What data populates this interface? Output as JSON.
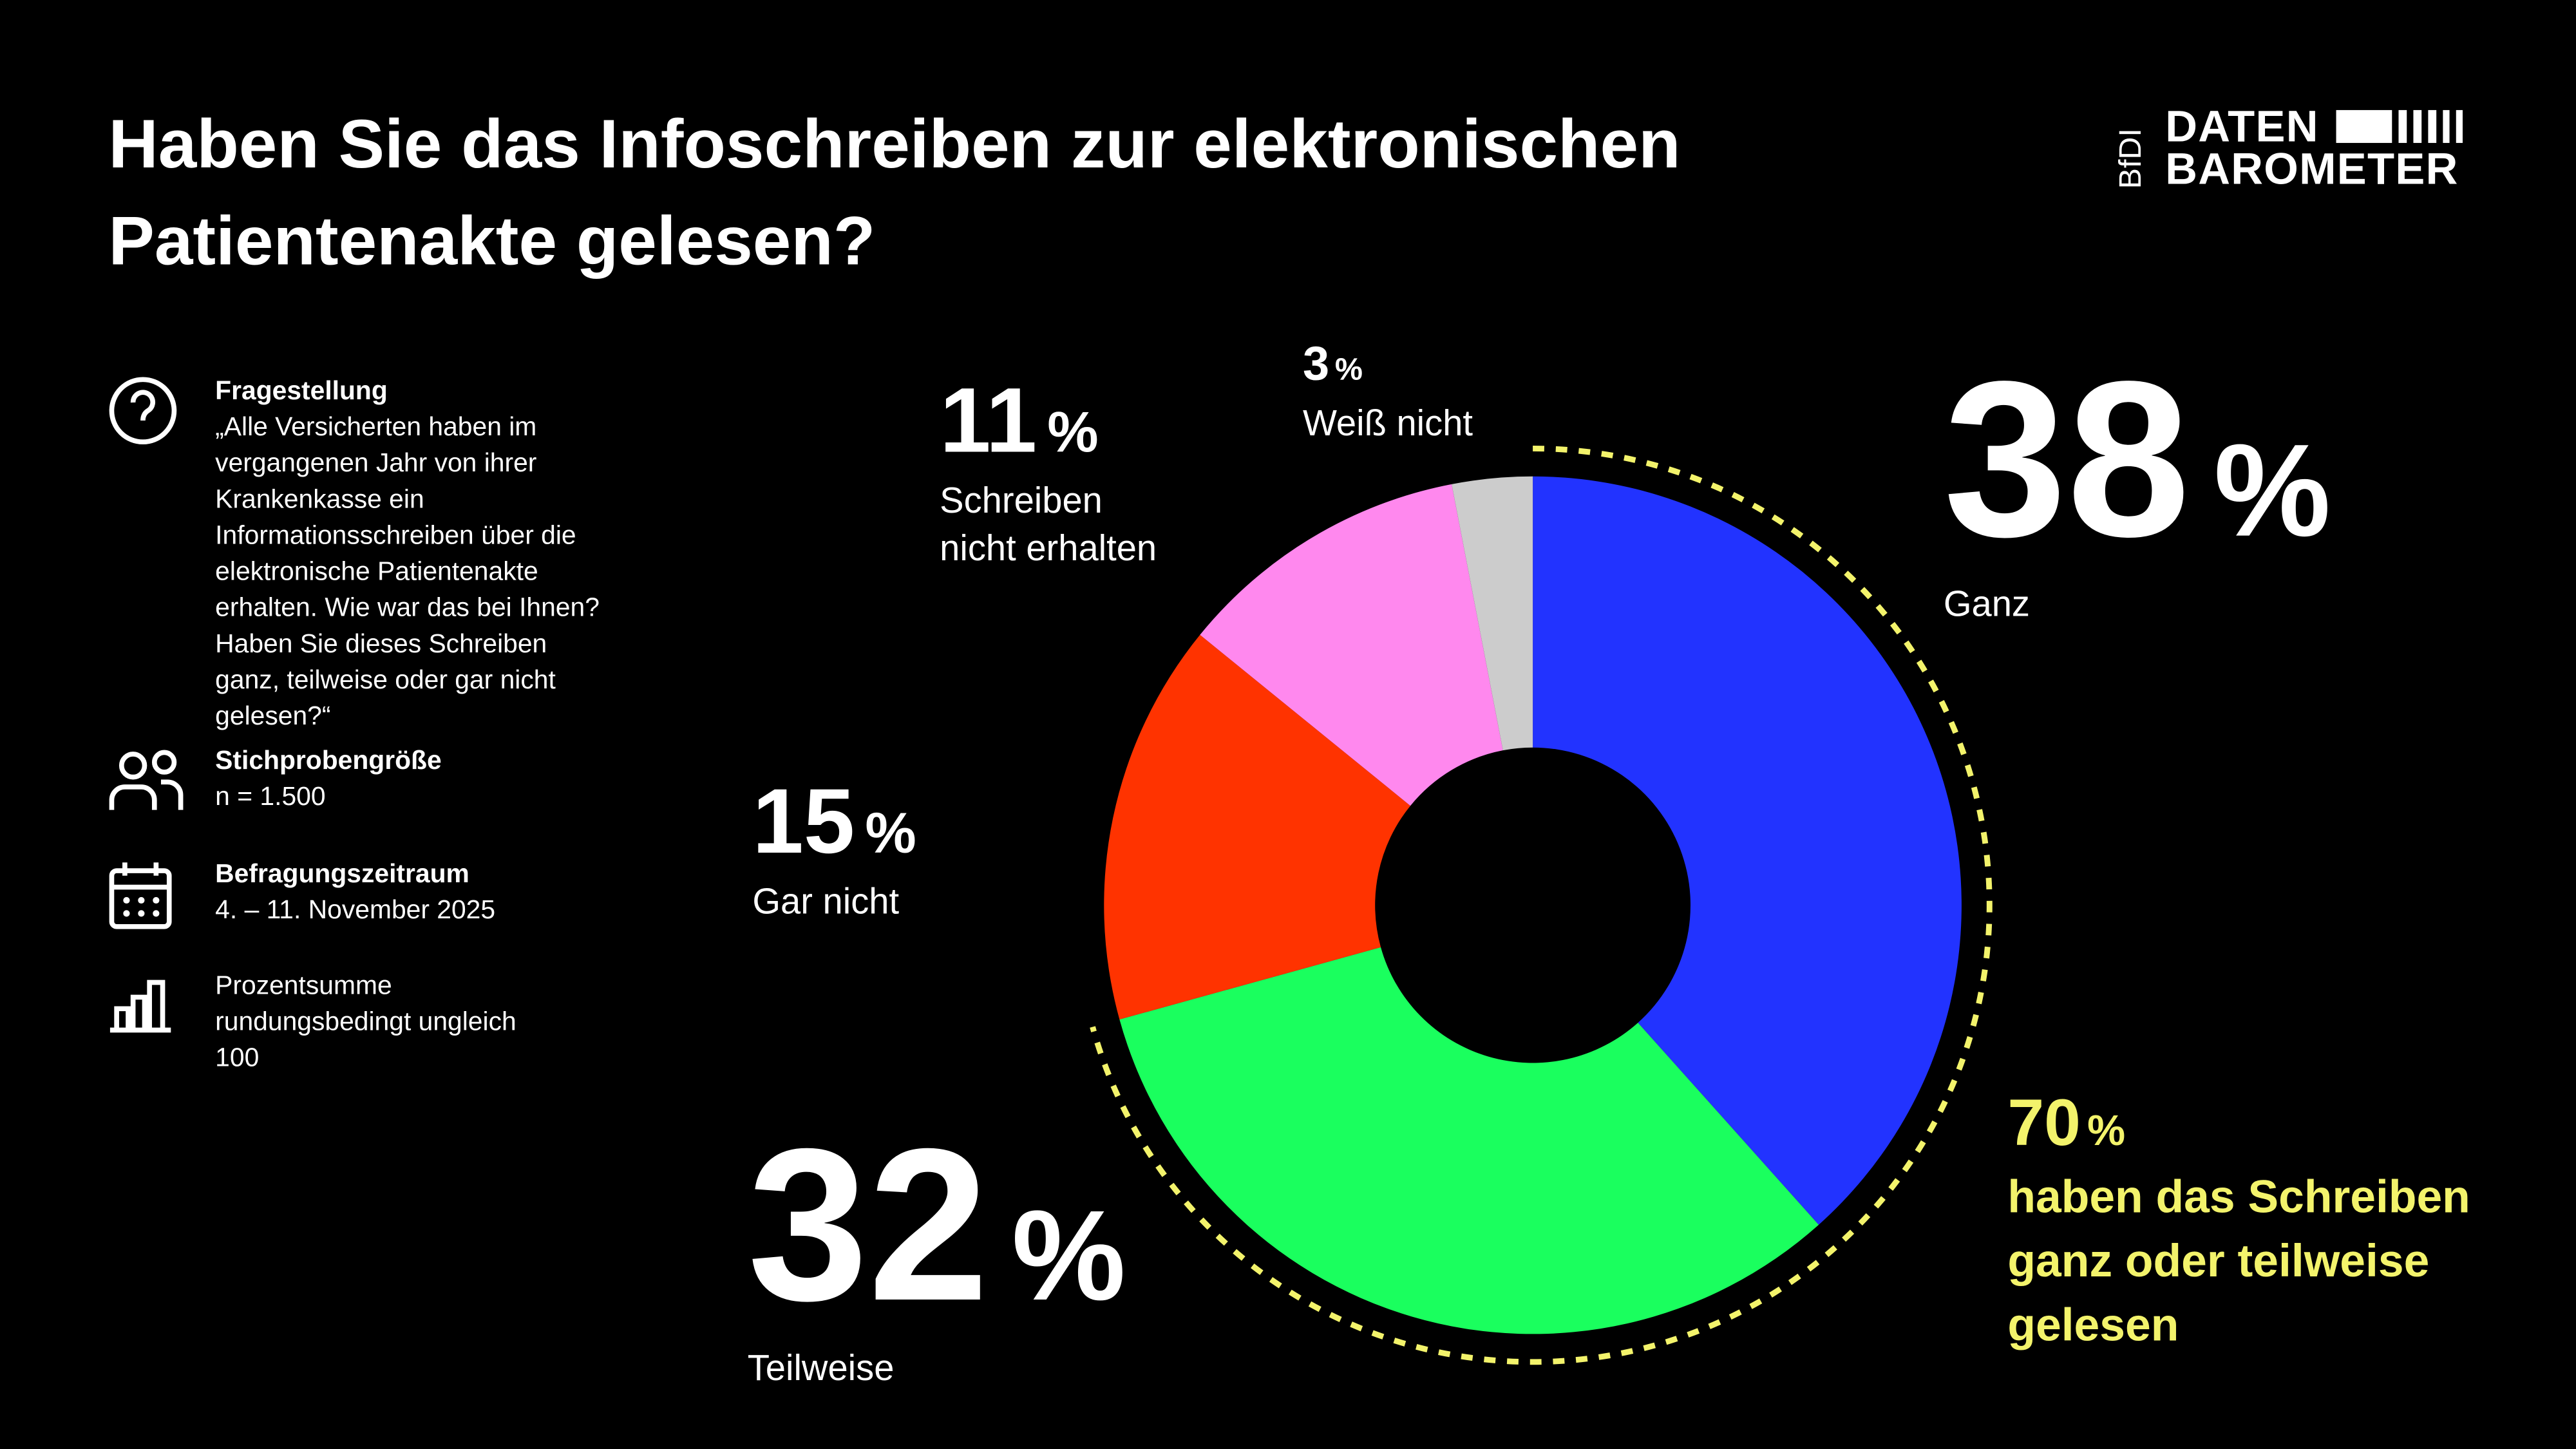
{
  "title": "Haben Sie das Infoschreiben zur elektronischen Patientenakte gelesen?",
  "logo": {
    "org": "BfDI",
    "line1": "DATEN",
    "line2": "BAROMETER"
  },
  "info": [
    {
      "heading": "Fragestellung",
      "text": "„Alle Versicherten haben im vergangenen Jahr von ihrer Krankenkasse ein Informationsschreiben über die elektronische Patientenakte erhalten. Wie war das bei Ihnen? Haben Sie dieses Schreiben ganz, teilweise oder gar nicht gelesen?“"
    },
    {
      "heading": "Stichprobengröße",
      "text": "n = 1.500"
    },
    {
      "heading": "Befragungszeitraum",
      "text": "4. – 11. November 2025"
    },
    {
      "text": "Prozentsumme rundungsbedingt ungleich 100"
    }
  ],
  "chart_data": {
    "type": "donut",
    "categories": [
      "Ganz",
      "Teilweise",
      "Gar nicht",
      "Schreiben nicht erhalten",
      "Weiß nicht"
    ],
    "values": [
      38,
      32,
      15,
      11,
      3
    ],
    "colors": [
      "#2233ff",
      "#1aff5e",
      "#ff3300",
      "#ff88ee",
      "#cccccc"
    ],
    "unit": "%",
    "annotation": {
      "value": 70,
      "text": "haben das Schreiben ganz oder teilweise gelesen",
      "color": "#f3f36b"
    }
  }
}
